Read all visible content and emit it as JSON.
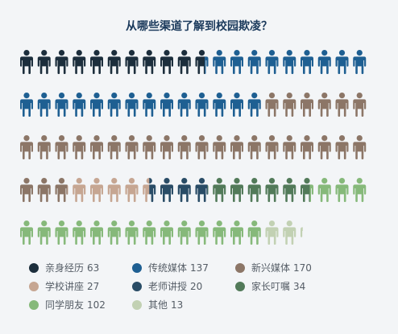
{
  "chart_data": {
    "type": "pictogram",
    "title": "从哪些渠道了解到校园欺凌？",
    "unit_per_icon": 5.88,
    "series": [
      {
        "name": "亲身经历",
        "value": 63,
        "icons": 10.7,
        "color": "#1c2e3c"
      },
      {
        "name": "传统媒体",
        "value": 137,
        "icons": 23.3,
        "color": "#1e5f92"
      },
      {
        "name": "新兴媒体",
        "value": 170,
        "icons": 28.9,
        "color": "#8c7667"
      },
      {
        "name": "学校讲座",
        "value": 27,
        "icons": 4.6,
        "color": "#c6a692"
      },
      {
        "name": "老师讲授",
        "value": 20,
        "icons": 3.4,
        "color": "#294c66"
      },
      {
        "name": "家长叮嘱",
        "value": 34,
        "icons": 5.8,
        "color": "#527a59"
      },
      {
        "name": "同学朋友",
        "value": 102,
        "icons": 17.3,
        "color": "#86b97a"
      },
      {
        "name": "其他",
        "value": 13,
        "icons": 2.2,
        "color": "#c2d1b3"
      }
    ],
    "grid": {
      "rows": 5,
      "cols": 20
    },
    "legend_position": "bottom-left"
  }
}
